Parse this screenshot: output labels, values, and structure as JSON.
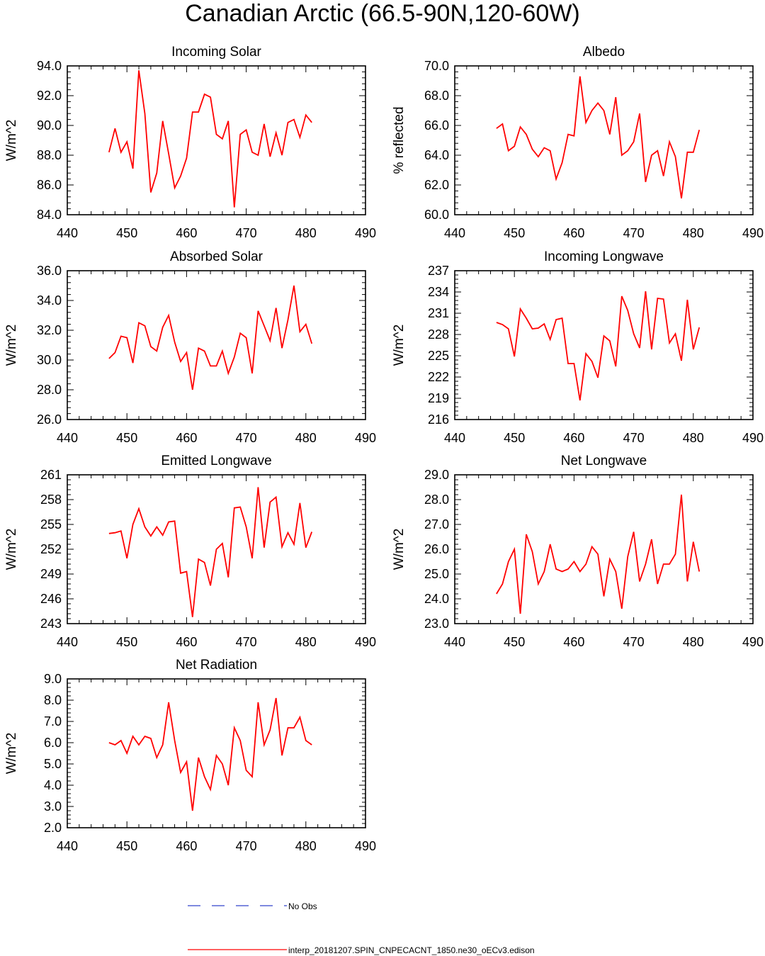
{
  "figure": {
    "title": "Canadian Arctic (66.5-90N,120-60W)"
  },
  "legend": {
    "placement": "bottom-center",
    "entries": [
      {
        "label": "No Obs",
        "color": "#3344cc",
        "style": "dashed"
      },
      {
        "label": "interp_20181207.SPIN_CNPECACNT_1850.ne30_oECv3.edison",
        "color": "#ff0000",
        "style": "solid"
      }
    ]
  },
  "series_color": "#ff0000",
  "chart_data": [
    {
      "type": "line",
      "title": "Incoming Solar",
      "ylabel": "W/m^2",
      "xlim": [
        440,
        490
      ],
      "ylim": [
        84.0,
        94.0
      ],
      "xticks": [
        "440",
        "450",
        "460",
        "470",
        "480",
        "490"
      ],
      "yticks": [
        "84.0",
        "86.0",
        "88.0",
        "90.0",
        "92.0",
        "94.0"
      ],
      "x": [
        447,
        448,
        449,
        450,
        451,
        452,
        453,
        454,
        455,
        456,
        457,
        458,
        459,
        460,
        461,
        462,
        463,
        464,
        465,
        466,
        467,
        468,
        469,
        470,
        471,
        472,
        473,
        474,
        475,
        476,
        477,
        478,
        479,
        480,
        481
      ],
      "values": [
        88.2,
        89.8,
        88.2,
        88.9,
        87.1,
        93.7,
        90.8,
        85.5,
        86.8,
        90.3,
        88.1,
        85.8,
        86.6,
        87.8,
        90.9,
        90.9,
        92.1,
        91.9,
        89.4,
        89.1,
        90.3,
        84.5,
        89.4,
        89.7,
        88.2,
        88.0,
        90.1,
        87.9,
        89.5,
        88.0,
        90.2,
        90.4,
        89.2,
        90.7,
        90.2
      ]
    },
    {
      "type": "line",
      "title": "Albedo",
      "ylabel": "% reflected",
      "xlim": [
        440,
        490
      ],
      "ylim": [
        60.0,
        70.0
      ],
      "xticks": [
        "440",
        "450",
        "460",
        "470",
        "480",
        "490"
      ],
      "yticks": [
        "60.0",
        "62.0",
        "64.0",
        "66.0",
        "68.0",
        "70.0"
      ],
      "x": [
        447,
        448,
        449,
        450,
        451,
        452,
        453,
        454,
        455,
        456,
        457,
        458,
        459,
        460,
        461,
        462,
        463,
        464,
        465,
        466,
        467,
        468,
        469,
        470,
        471,
        472,
        473,
        474,
        475,
        476,
        477,
        478,
        479,
        480,
        481
      ],
      "values": [
        65.8,
        66.1,
        64.3,
        64.6,
        65.9,
        65.4,
        64.4,
        63.9,
        64.5,
        64.3,
        62.4,
        63.5,
        65.4,
        65.3,
        69.3,
        66.2,
        67.0,
        67.5,
        67.0,
        65.4,
        67.9,
        64.0,
        64.3,
        64.9,
        66.8,
        62.2,
        64.0,
        64.3,
        62.6,
        64.9,
        63.9,
        61.1,
        64.2,
        64.2,
        65.7
      ]
    },
    {
      "type": "line",
      "title": "Absorbed Solar",
      "ylabel": "W/m^2",
      "xlim": [
        440,
        490
      ],
      "ylim": [
        26.0,
        36.0
      ],
      "xticks": [
        "440",
        "450",
        "460",
        "470",
        "480",
        "490"
      ],
      "yticks": [
        "26.0",
        "28.0",
        "30.0",
        "32.0",
        "34.0",
        "36.0"
      ],
      "x": [
        447,
        448,
        449,
        450,
        451,
        452,
        453,
        454,
        455,
        456,
        457,
        458,
        459,
        460,
        461,
        462,
        463,
        464,
        465,
        466,
        467,
        468,
        469,
        470,
        471,
        472,
        473,
        474,
        475,
        476,
        477,
        478,
        479,
        480,
        481
      ],
      "values": [
        30.1,
        30.5,
        31.6,
        31.5,
        29.8,
        32.5,
        32.3,
        30.9,
        30.6,
        32.2,
        33.0,
        31.2,
        29.9,
        30.5,
        28.0,
        30.8,
        30.6,
        29.6,
        29.6,
        30.6,
        29.1,
        30.2,
        31.8,
        31.5,
        29.1,
        33.3,
        32.3,
        31.3,
        33.5,
        30.8,
        32.7,
        35.0,
        31.9,
        32.4,
        31.1
      ]
    },
    {
      "type": "line",
      "title": "Incoming Longwave",
      "ylabel": "W/m^2",
      "xlim": [
        440,
        490
      ],
      "ylim": [
        216,
        237
      ],
      "xticks": [
        "440",
        "450",
        "460",
        "470",
        "480",
        "490"
      ],
      "yticks": [
        "216",
        "219",
        "222",
        "225",
        "228",
        "231",
        "234",
        "237"
      ],
      "x": [
        447,
        448,
        449,
        450,
        451,
        452,
        453,
        454,
        455,
        456,
        457,
        458,
        459,
        460,
        461,
        462,
        463,
        464,
        465,
        466,
        467,
        468,
        469,
        470,
        471,
        472,
        473,
        474,
        475,
        476,
        477,
        478,
        479,
        480,
        481
      ],
      "values": [
        229.7,
        229.4,
        228.8,
        224.9,
        231.6,
        230.3,
        228.8,
        228.9,
        229.5,
        227.3,
        230.1,
        230.3,
        223.9,
        223.9,
        218.7,
        225.3,
        224.2,
        221.9,
        227.8,
        227.1,
        223.5,
        233.4,
        231.4,
        228.1,
        226.1,
        234.1,
        225.9,
        233.1,
        233.0,
        226.8,
        228.1,
        224.3,
        232.9,
        225.9,
        229.0
      ]
    },
    {
      "type": "line",
      "title": "Emitted Longwave",
      "ylabel": "W/m^2",
      "xlim": [
        440,
        490
      ],
      "ylim": [
        243,
        261
      ],
      "xticks": [
        "440",
        "450",
        "460",
        "470",
        "480",
        "490"
      ],
      "yticks": [
        "243",
        "246",
        "249",
        "252",
        "255",
        "258",
        "261"
      ],
      "x": [
        447,
        448,
        449,
        450,
        451,
        452,
        453,
        454,
        455,
        456,
        457,
        458,
        459,
        460,
        461,
        462,
        463,
        464,
        465,
        466,
        467,
        468,
        469,
        470,
        471,
        472,
        473,
        474,
        475,
        476,
        477,
        478,
        479,
        480,
        481
      ],
      "values": [
        253.9,
        254.0,
        254.2,
        250.9,
        255.0,
        256.9,
        254.7,
        253.6,
        254.7,
        253.7,
        255.3,
        255.4,
        249.1,
        249.3,
        243.8,
        250.8,
        250.4,
        247.6,
        252.0,
        252.7,
        248.6,
        257.0,
        257.1,
        254.7,
        250.9,
        259.5,
        252.2,
        257.7,
        258.3,
        252.3,
        254.0,
        252.6,
        257.6,
        252.2,
        254.1
      ]
    },
    {
      "type": "line",
      "title": "Net Longwave",
      "ylabel": "W/m^2",
      "xlim": [
        440,
        490
      ],
      "ylim": [
        23.0,
        29.0
      ],
      "xticks": [
        "440",
        "450",
        "460",
        "470",
        "480",
        "490"
      ],
      "yticks": [
        "23.0",
        "24.0",
        "25.0",
        "26.0",
        "27.0",
        "28.0",
        "29.0"
      ],
      "x": [
        447,
        448,
        449,
        450,
        451,
        452,
        453,
        454,
        455,
        456,
        457,
        458,
        459,
        460,
        461,
        462,
        463,
        464,
        465,
        466,
        467,
        468,
        469,
        470,
        471,
        472,
        473,
        474,
        475,
        476,
        477,
        478,
        479,
        480,
        481
      ],
      "values": [
        24.2,
        24.6,
        25.5,
        26.0,
        23.4,
        26.6,
        25.9,
        24.6,
        25.1,
        26.2,
        25.2,
        25.1,
        25.2,
        25.5,
        25.1,
        25.4,
        26.1,
        25.8,
        24.1,
        25.6,
        25.1,
        23.6,
        25.7,
        26.7,
        24.7,
        25.4,
        26.4,
        24.6,
        25.4,
        25.4,
        25.8,
        28.2,
        24.7,
        26.3,
        25.1
      ]
    },
    {
      "type": "line",
      "title": "Net Radiation",
      "ylabel": "W/m^2",
      "xlim": [
        440,
        490
      ],
      "ylim": [
        2.0,
        9.0
      ],
      "xticks": [
        "440",
        "450",
        "460",
        "470",
        "480",
        "490"
      ],
      "yticks": [
        "2.0",
        "3.0",
        "4.0",
        "5.0",
        "6.0",
        "7.0",
        "8.0",
        "9.0"
      ],
      "x": [
        447,
        448,
        449,
        450,
        451,
        452,
        453,
        454,
        455,
        456,
        457,
        458,
        459,
        460,
        461,
        462,
        463,
        464,
        465,
        466,
        467,
        468,
        469,
        470,
        471,
        472,
        473,
        474,
        475,
        476,
        477,
        478,
        479,
        480,
        481
      ],
      "values": [
        6.0,
        5.9,
        6.1,
        5.5,
        6.3,
        5.9,
        6.3,
        6.2,
        5.3,
        5.9,
        7.9,
        6.1,
        4.6,
        5.1,
        2.8,
        5.3,
        4.4,
        3.8,
        5.4,
        5.0,
        4.0,
        6.7,
        6.1,
        4.7,
        4.4,
        7.9,
        5.9,
        6.6,
        8.1,
        5.4,
        6.7,
        6.7,
        7.2,
        6.1,
        5.9
      ]
    }
  ]
}
